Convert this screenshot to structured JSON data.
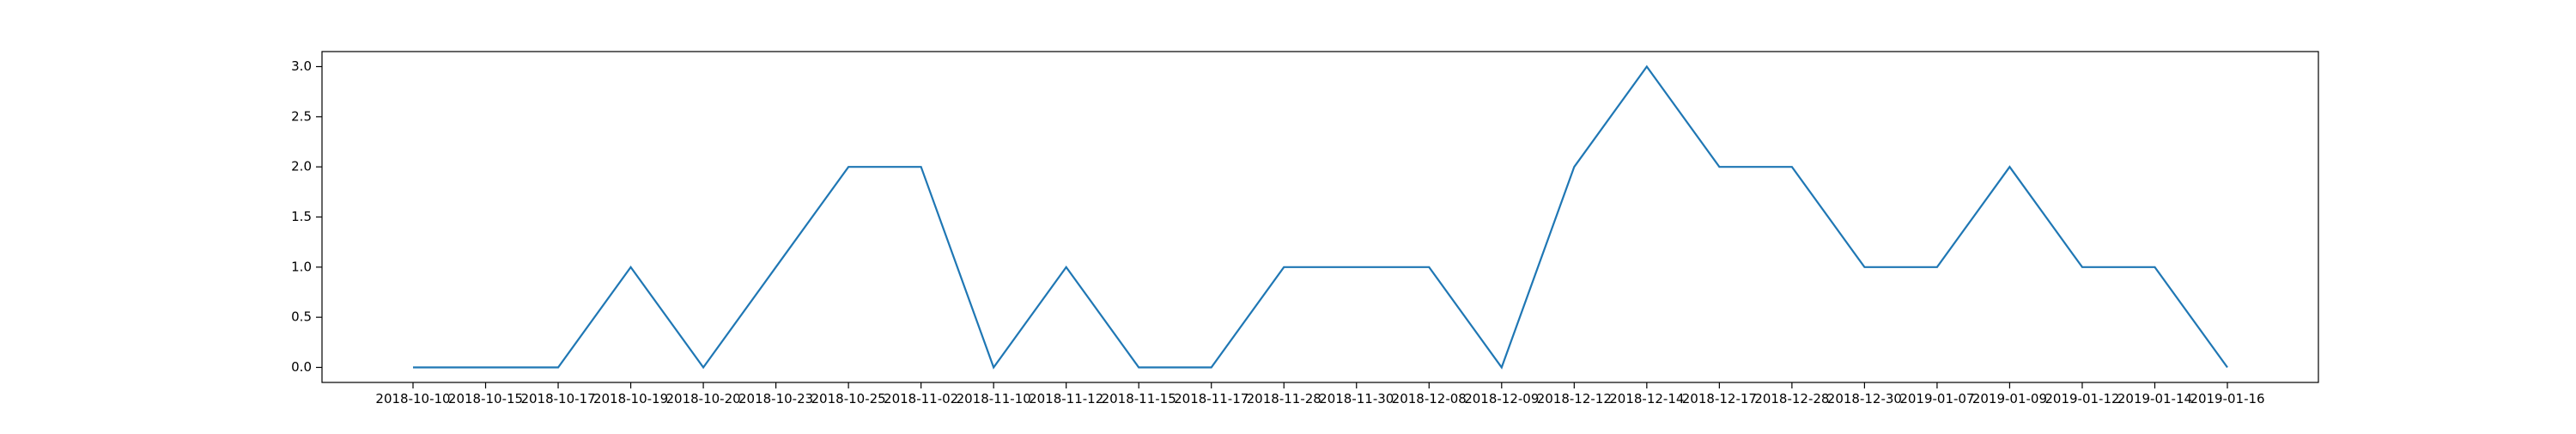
{
  "chart_data": {
    "type": "line",
    "title": "",
    "xlabel": "",
    "ylabel": "",
    "categories": [
      "2018-10-10",
      "2018-10-15",
      "2018-10-17",
      "2018-10-19",
      "2018-10-20",
      "2018-10-23",
      "2018-10-25",
      "2018-11-02",
      "2018-11-10",
      "2018-11-12",
      "2018-11-15",
      "2018-11-17",
      "2018-11-28",
      "2018-11-30",
      "2018-12-08",
      "2018-12-09",
      "2018-12-12",
      "2018-12-14",
      "2018-12-17",
      "2018-12-28",
      "2018-12-30",
      "2019-01-07",
      "2019-01-09",
      "2019-01-12",
      "2019-01-14",
      "2019-01-16"
    ],
    "series": [
      {
        "values": [
          0,
          0,
          0,
          1,
          0,
          1,
          2,
          2,
          0,
          1,
          0,
          0,
          1,
          1,
          1,
          0,
          2,
          3,
          2,
          2,
          1,
          1,
          2,
          1,
          1,
          0
        ],
        "color": "#1f77b4"
      }
    ],
    "ylim": [
      -0.15,
      3.15
    ],
    "yticks": [
      "0.0",
      "0.5",
      "1.0",
      "1.5",
      "2.0",
      "2.5",
      "3.0"
    ],
    "grid": false,
    "legend": "none"
  }
}
